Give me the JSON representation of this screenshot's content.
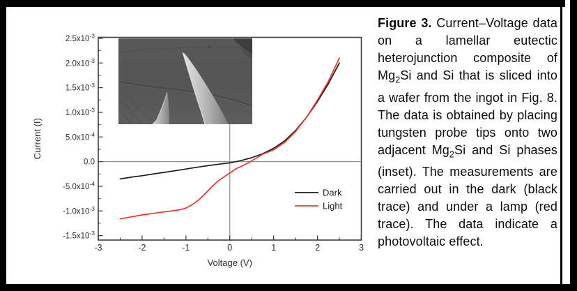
{
  "figure": {
    "caption_segments": [
      {
        "text": "Figure 3.",
        "bold": true
      },
      {
        "text": "  Current–Voltage data on a lamellar eutectic heterojunction composite of Mg"
      },
      {
        "text": "2",
        "sub": true
      },
      {
        "text": "Si and Si that is sliced into a wafer from the ingot in Fig. 8.  The data is obtained by placing tungsten probe tips onto two adjacent Mg"
      },
      {
        "text": "2",
        "sub": true
      },
      {
        "text": "Si and Si phases (inset).  The measurements are carried out in the dark (black trace) and under a lamp (red trace).  The data indicate a photovoltaic effect."
      }
    ]
  },
  "chart_data": {
    "type": "line",
    "title": "",
    "xlabel": "Voltage (V)",
    "ylabel": "Current (I)",
    "xlim": [
      -3,
      3
    ],
    "ylim": [
      -0.00159,
      0.00252
    ],
    "grid": false,
    "zero_axes_shown": true,
    "legend_position": "inside bottom-right",
    "x_ticks": [
      {
        "v": -3,
        "label": "-3"
      },
      {
        "v": -2,
        "label": "-2"
      },
      {
        "v": -1,
        "label": "-1"
      },
      {
        "v": 0,
        "label": "0"
      },
      {
        "v": 1,
        "label": "1"
      },
      {
        "v": 2,
        "label": "2"
      },
      {
        "v": 3,
        "label": "3"
      }
    ],
    "y_ticks": [
      {
        "v": 0.0025,
        "label": "2.5x10^-3"
      },
      {
        "v": 0.002,
        "label": "2.0x10^-3"
      },
      {
        "v": 0.0015,
        "label": "1.5x10^-3"
      },
      {
        "v": 0.001,
        "label": "1.0x10^-3"
      },
      {
        "v": 0.0005,
        "label": "5.0x10^-4"
      },
      {
        "v": 0,
        "label": "0.0"
      },
      {
        "v": -0.0005,
        "label": "-5.0x10^-4"
      },
      {
        "v": -0.001,
        "label": "-1.0x10^-3"
      },
      {
        "v": -0.0015,
        "label": "-1.5x10^-3"
      }
    ],
    "series": [
      {
        "name": "Dark",
        "color": "#1c1c1c",
        "points": [
          [
            -2.5,
            -0.00035
          ],
          [
            -2.25,
            -0.000315
          ],
          [
            -2,
            -0.000285
          ],
          [
            -1.75,
            -0.000252
          ],
          [
            -1.5,
            -0.000218
          ],
          [
            -1.25,
            -0.000185
          ],
          [
            -1,
            -0.00015
          ],
          [
            -0.75,
            -0.000115
          ],
          [
            -0.5,
            -8.2e-05
          ],
          [
            -0.25,
            -5.2e-05
          ],
          [
            0,
            -2.5e-05
          ],
          [
            0.25,
            2e-05
          ],
          [
            0.5,
            8e-05
          ],
          [
            0.75,
            0.00016
          ],
          [
            1,
            0.00027
          ],
          [
            1.25,
            0.00042
          ],
          [
            1.5,
            0.00063
          ],
          [
            1.75,
            0.0009
          ],
          [
            2,
            0.00122
          ],
          [
            2.25,
            0.00158
          ],
          [
            2.5,
            0.002
          ]
        ]
      },
      {
        "name": "Light",
        "color": "#e63529",
        "points": [
          [
            -2.5,
            -0.00116
          ],
          [
            -2.25,
            -0.00112
          ],
          [
            -2,
            -0.00108
          ],
          [
            -1.75,
            -0.00105
          ],
          [
            -1.5,
            -0.00102
          ],
          [
            -1.25,
            -0.00099
          ],
          [
            -1.1,
            -0.00097
          ],
          [
            -1,
            -0.00094
          ],
          [
            -0.85,
            -0.00087
          ],
          [
            -0.7,
            -0.00077
          ],
          [
            -0.55,
            -0.00064
          ],
          [
            -0.4,
            -0.0005
          ],
          [
            -0.25,
            -0.00038
          ],
          [
            -0.1,
            -0.00029
          ],
          [
            0,
            -0.00023
          ],
          [
            0.15,
            -0.00014
          ],
          [
            0.3,
            -8e-05
          ],
          [
            0.45,
            -1e-05
          ],
          [
            0.6,
            7e-05
          ],
          [
            0.75,
            0.00015
          ],
          [
            1,
            0.00024
          ],
          [
            1.25,
            0.00039
          ],
          [
            1.5,
            0.00061
          ],
          [
            1.75,
            0.0009
          ],
          [
            2,
            0.00125
          ],
          [
            2.25,
            0.00163
          ],
          [
            2.5,
            0.0021
          ]
        ]
      }
    ]
  },
  "colors": {
    "frame": "#000000",
    "axis": "#3d3d3d",
    "zero_line": "#8f8f8f",
    "tick_text": "#2e2e2e"
  }
}
